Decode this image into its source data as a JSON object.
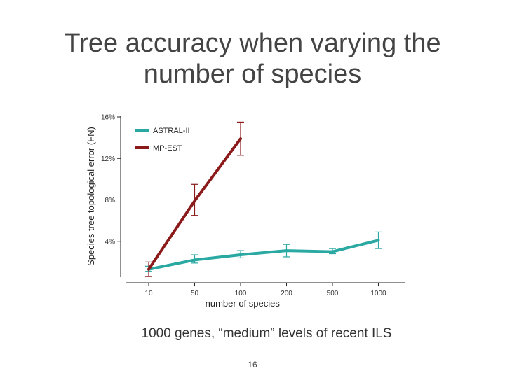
{
  "slide": {
    "title_line1": "Tree accuracy when varying the",
    "title_line2": "number of species",
    "caption": "1000 genes, “medium” levels of recent ILS",
    "page_number": "16"
  },
  "chart_data": {
    "type": "line",
    "title": "",
    "xlabel": "number of species",
    "ylabel": "Species tree topological error (FN)",
    "categories": [
      "10",
      "50",
      "100",
      "200",
      "500",
      "1000"
    ],
    "yticks": [
      4,
      8,
      12,
      16
    ],
    "ytick_labels": [
      "4%",
      "8%",
      "12%",
      "16%"
    ],
    "ylim": [
      0,
      16
    ],
    "legend_position": "top-left",
    "grid": false,
    "series": [
      {
        "name": "ASTRAL-II",
        "color": "#2aa8a2",
        "values": [
          1.3,
          2.2,
          2.7,
          3.1,
          3.0,
          4.1
        ],
        "err_low": [
          1.1,
          1.9,
          2.4,
          2.5,
          2.8,
          3.3
        ],
        "err_high": [
          1.6,
          2.7,
          3.1,
          3.7,
          3.3,
          4.9
        ]
      },
      {
        "name": "MP-EST",
        "color": "#8b1a1a",
        "values": [
          1.3,
          7.9,
          13.9,
          null,
          null,
          null
        ],
        "err_low": [
          0.6,
          6.5,
          12.3,
          null,
          null,
          null
        ],
        "err_high": [
          2.0,
          9.5,
          15.5,
          null,
          null,
          null
        ]
      }
    ]
  }
}
